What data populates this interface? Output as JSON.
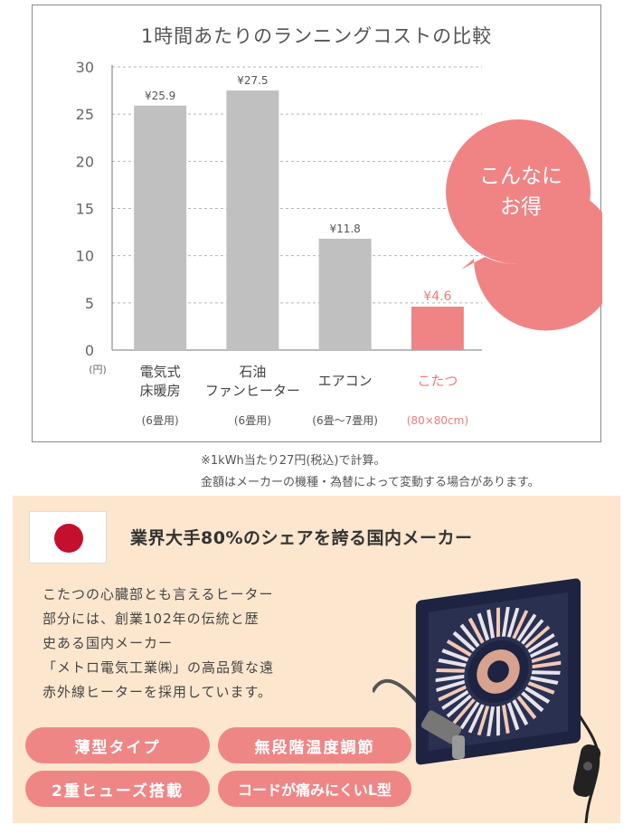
{
  "chart_data": {
    "type": "bar",
    "title": "1時間あたりのランニングコストの比較",
    "ylabel": "(円)",
    "ylim": [
      0,
      30
    ],
    "yticks": [
      0,
      5,
      10,
      15,
      20,
      25,
      30
    ],
    "grid": "dashed horizontal",
    "categories": [
      {
        "name_lines": [
          "電気式",
          "床暖房"
        ],
        "sub": "(6畳用)",
        "highlight": false
      },
      {
        "name_lines": [
          "石油",
          "ファンヒーター"
        ],
        "sub": "(6畳用)",
        "highlight": false
      },
      {
        "name_lines": [
          "エアコン"
        ],
        "sub": "(6畳〜7畳用)",
        "highlight": false
      },
      {
        "name_lines": [
          "こたつ"
        ],
        "sub": "(80×80cm)",
        "highlight": true
      }
    ],
    "values": [
      25.9,
      27.5,
      11.8,
      4.6
    ],
    "value_labels": [
      "¥25.9",
      "¥27.5",
      "¥11.8",
      "¥4.6"
    ],
    "bar_color": "#c0c0c0",
    "highlight_color": "#f08484",
    "bubble_lines": [
      "こんなに",
      "お得"
    ]
  },
  "notes": [
    "※1kWh当たり27円(税込)で計算。",
    "金額はメーカーの機種・為替によって変動する場合があります。"
  ],
  "maker": {
    "title": "業界大手80%のシェアを誇る国内メーカー",
    "body": "こたつの心臓部とも言えるヒーター\n部分には、創業102年の伝統と歴\n史ある国内メーカー\n「メトロ電気工業㈱」の高品質な遠\n赤外線ヒーターを採用しています。",
    "features": [
      "薄型タイプ",
      "無段階温度調節",
      "2重ヒューズ搭載",
      "コードが痛みにくいL型"
    ],
    "flag_icon": "japan-flag-icon",
    "product_icon": "kotatsu-heater-unit-icon"
  }
}
